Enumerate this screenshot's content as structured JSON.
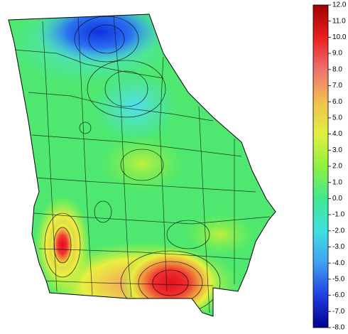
{
  "colorbar": {
    "lim": [
      -8,
      12
    ],
    "ticks": [
      {
        "value": 12,
        "label": "12.0"
      },
      {
        "value": 11,
        "label": "11.0"
      },
      {
        "value": 10,
        "label": "10.0"
      },
      {
        "value": 9,
        "label": "9.0"
      },
      {
        "value": 8,
        "label": "8.0"
      },
      {
        "value": 7,
        "label": "7.0"
      },
      {
        "value": 6,
        "label": "6.0"
      },
      {
        "value": 5,
        "label": "5.0"
      },
      {
        "value": 4,
        "label": "4.0"
      },
      {
        "value": 3,
        "label": "3.0"
      },
      {
        "value": 2,
        "label": "2.0"
      },
      {
        "value": 1,
        "label": "1.0"
      },
      {
        "value": 0,
        "label": "0.0"
      },
      {
        "value": -1,
        "label": "-1.0"
      },
      {
        "value": -2,
        "label": "-2.0"
      },
      {
        "value": -3,
        "label": "-3.0"
      },
      {
        "value": -4,
        "label": "-4.0"
      },
      {
        "value": -5,
        "label": "-5.0"
      },
      {
        "value": -6,
        "label": "-6.0"
      },
      {
        "value": -7,
        "label": "-7.0"
      },
      {
        "value": -8,
        "label": "-8.0"
      }
    ]
  }
}
